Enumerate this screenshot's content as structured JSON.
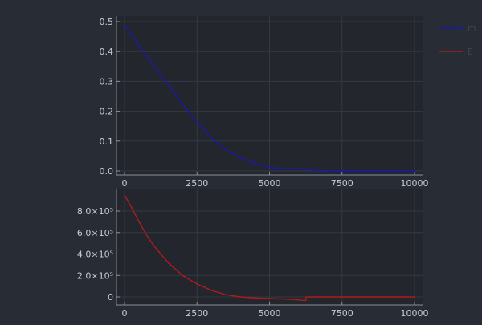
{
  "background": "#282c34",
  "plot_background": "#23262d",
  "grid_color": "#343843",
  "axis_color": "#8a8f9a",
  "tick_text_color": "#c8ccd4",
  "legend_text_color": "#3f434c",
  "legend": {
    "entries": [
      {
        "label": "m",
        "color": "#1a1aa8"
      },
      {
        "label": "E",
        "color": "#b01c1c"
      }
    ]
  },
  "chart_data": [
    {
      "type": "line",
      "title": "",
      "xlabel": "",
      "ylabel": "",
      "xlim": [
        0,
        10000
      ],
      "ylim": [
        0,
        0.5
      ],
      "grid": true,
      "x_ticks": [
        0,
        2500,
        5000,
        7500,
        10000
      ],
      "x_tick_labels": [
        "0",
        "2500",
        "5000",
        "7500",
        "10000"
      ],
      "y_ticks": [
        0,
        0.1,
        0.2,
        0.3,
        0.4,
        0.5
      ],
      "y_tick_labels": [
        "0.0",
        "0.1",
        "0.2",
        "0.3",
        "0.4",
        "0.5"
      ],
      "series": [
        {
          "name": "m",
          "color": "#1a1aa8",
          "x": [
            0,
            500,
            1000,
            1500,
            2000,
            2500,
            3000,
            3500,
            4000,
            4500,
            5000,
            5500,
            6000,
            6300,
            6500,
            7000,
            7500,
            8000,
            8500,
            9000,
            9500,
            10000
          ],
          "y": [
            0.49,
            0.42,
            0.355,
            0.29,
            0.225,
            0.165,
            0.11,
            0.07,
            0.045,
            0.025,
            0.012,
            0.008,
            0.009,
            0.004,
            0.002,
            0.001,
            0.0,
            0.0,
            0.0,
            0.0,
            0.0,
            0.0
          ]
        }
      ]
    },
    {
      "type": "line",
      "title": "",
      "xlabel": "",
      "ylabel": "",
      "xlim": [
        0,
        10000
      ],
      "ylim": [
        -50000,
        1000000
      ],
      "grid": true,
      "x_ticks": [
        0,
        2500,
        5000,
        7500,
        10000
      ],
      "x_tick_labels": [
        "0",
        "2500",
        "5000",
        "7500",
        "10000"
      ],
      "y_ticks": [
        0,
        200000,
        400000,
        600000,
        800000
      ],
      "y_tick_labels": [
        "0",
        "2.0×10⁵",
        "4.0×10⁵",
        "6.0×10⁵",
        "8.0×10⁵"
      ],
      "series": [
        {
          "name": "E",
          "color": "#b01c1c",
          "x": [
            0,
            250,
            500,
            750,
            1000,
            1500,
            2000,
            2500,
            3000,
            3500,
            4000,
            4500,
            5000,
            5500,
            6000,
            6250,
            6260,
            6500,
            7000,
            8000,
            9000,
            10000
          ],
          "y": [
            950000,
            830000,
            700000,
            580000,
            480000,
            320000,
            200000,
            120000,
            60000,
            20000,
            0,
            -10000,
            -15000,
            -20000,
            -28000,
            -35000,
            0,
            0,
            0,
            0,
            0,
            0
          ]
        }
      ]
    }
  ]
}
